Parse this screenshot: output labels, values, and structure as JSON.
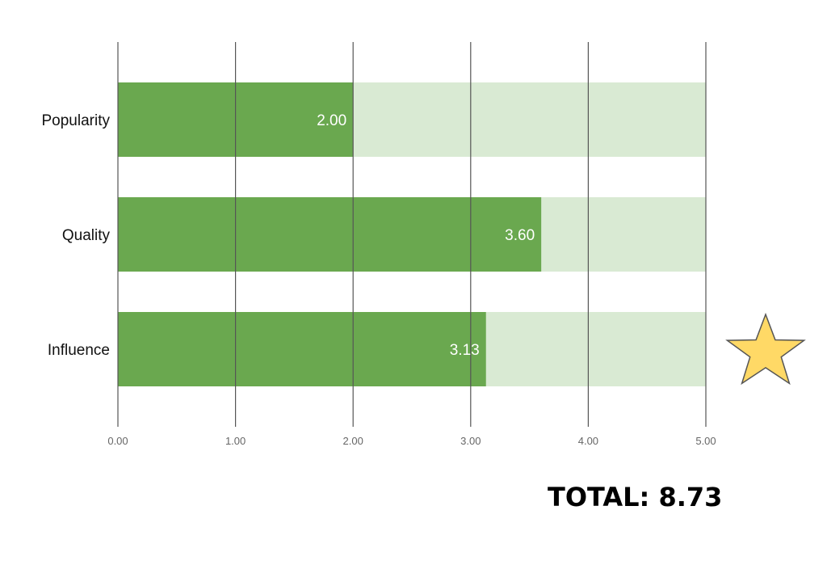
{
  "chart_data": {
    "type": "bar",
    "orientation": "horizontal",
    "categories": [
      "Popularity",
      "Quality",
      "Influence"
    ],
    "values": [
      2.0,
      3.6,
      3.13
    ],
    "data_labels": [
      "2.00",
      "3.60",
      "3.13"
    ],
    "max_value": 5.0,
    "xlim": [
      0,
      5
    ],
    "xticks": [
      "0.00",
      "1.00",
      "2.00",
      "3.00",
      "4.00",
      "5.00"
    ],
    "title": "",
    "xlabel": "",
    "ylabel": "",
    "grid": true,
    "colors": {
      "bar": "#6aa84f",
      "bar_background": "#d9ead3",
      "grid": "#555555"
    }
  },
  "total": {
    "text": "TOTAL: 8.73"
  },
  "decoration": {
    "icon": "star-icon",
    "color": "#ffd966",
    "stroke": "#555555"
  }
}
